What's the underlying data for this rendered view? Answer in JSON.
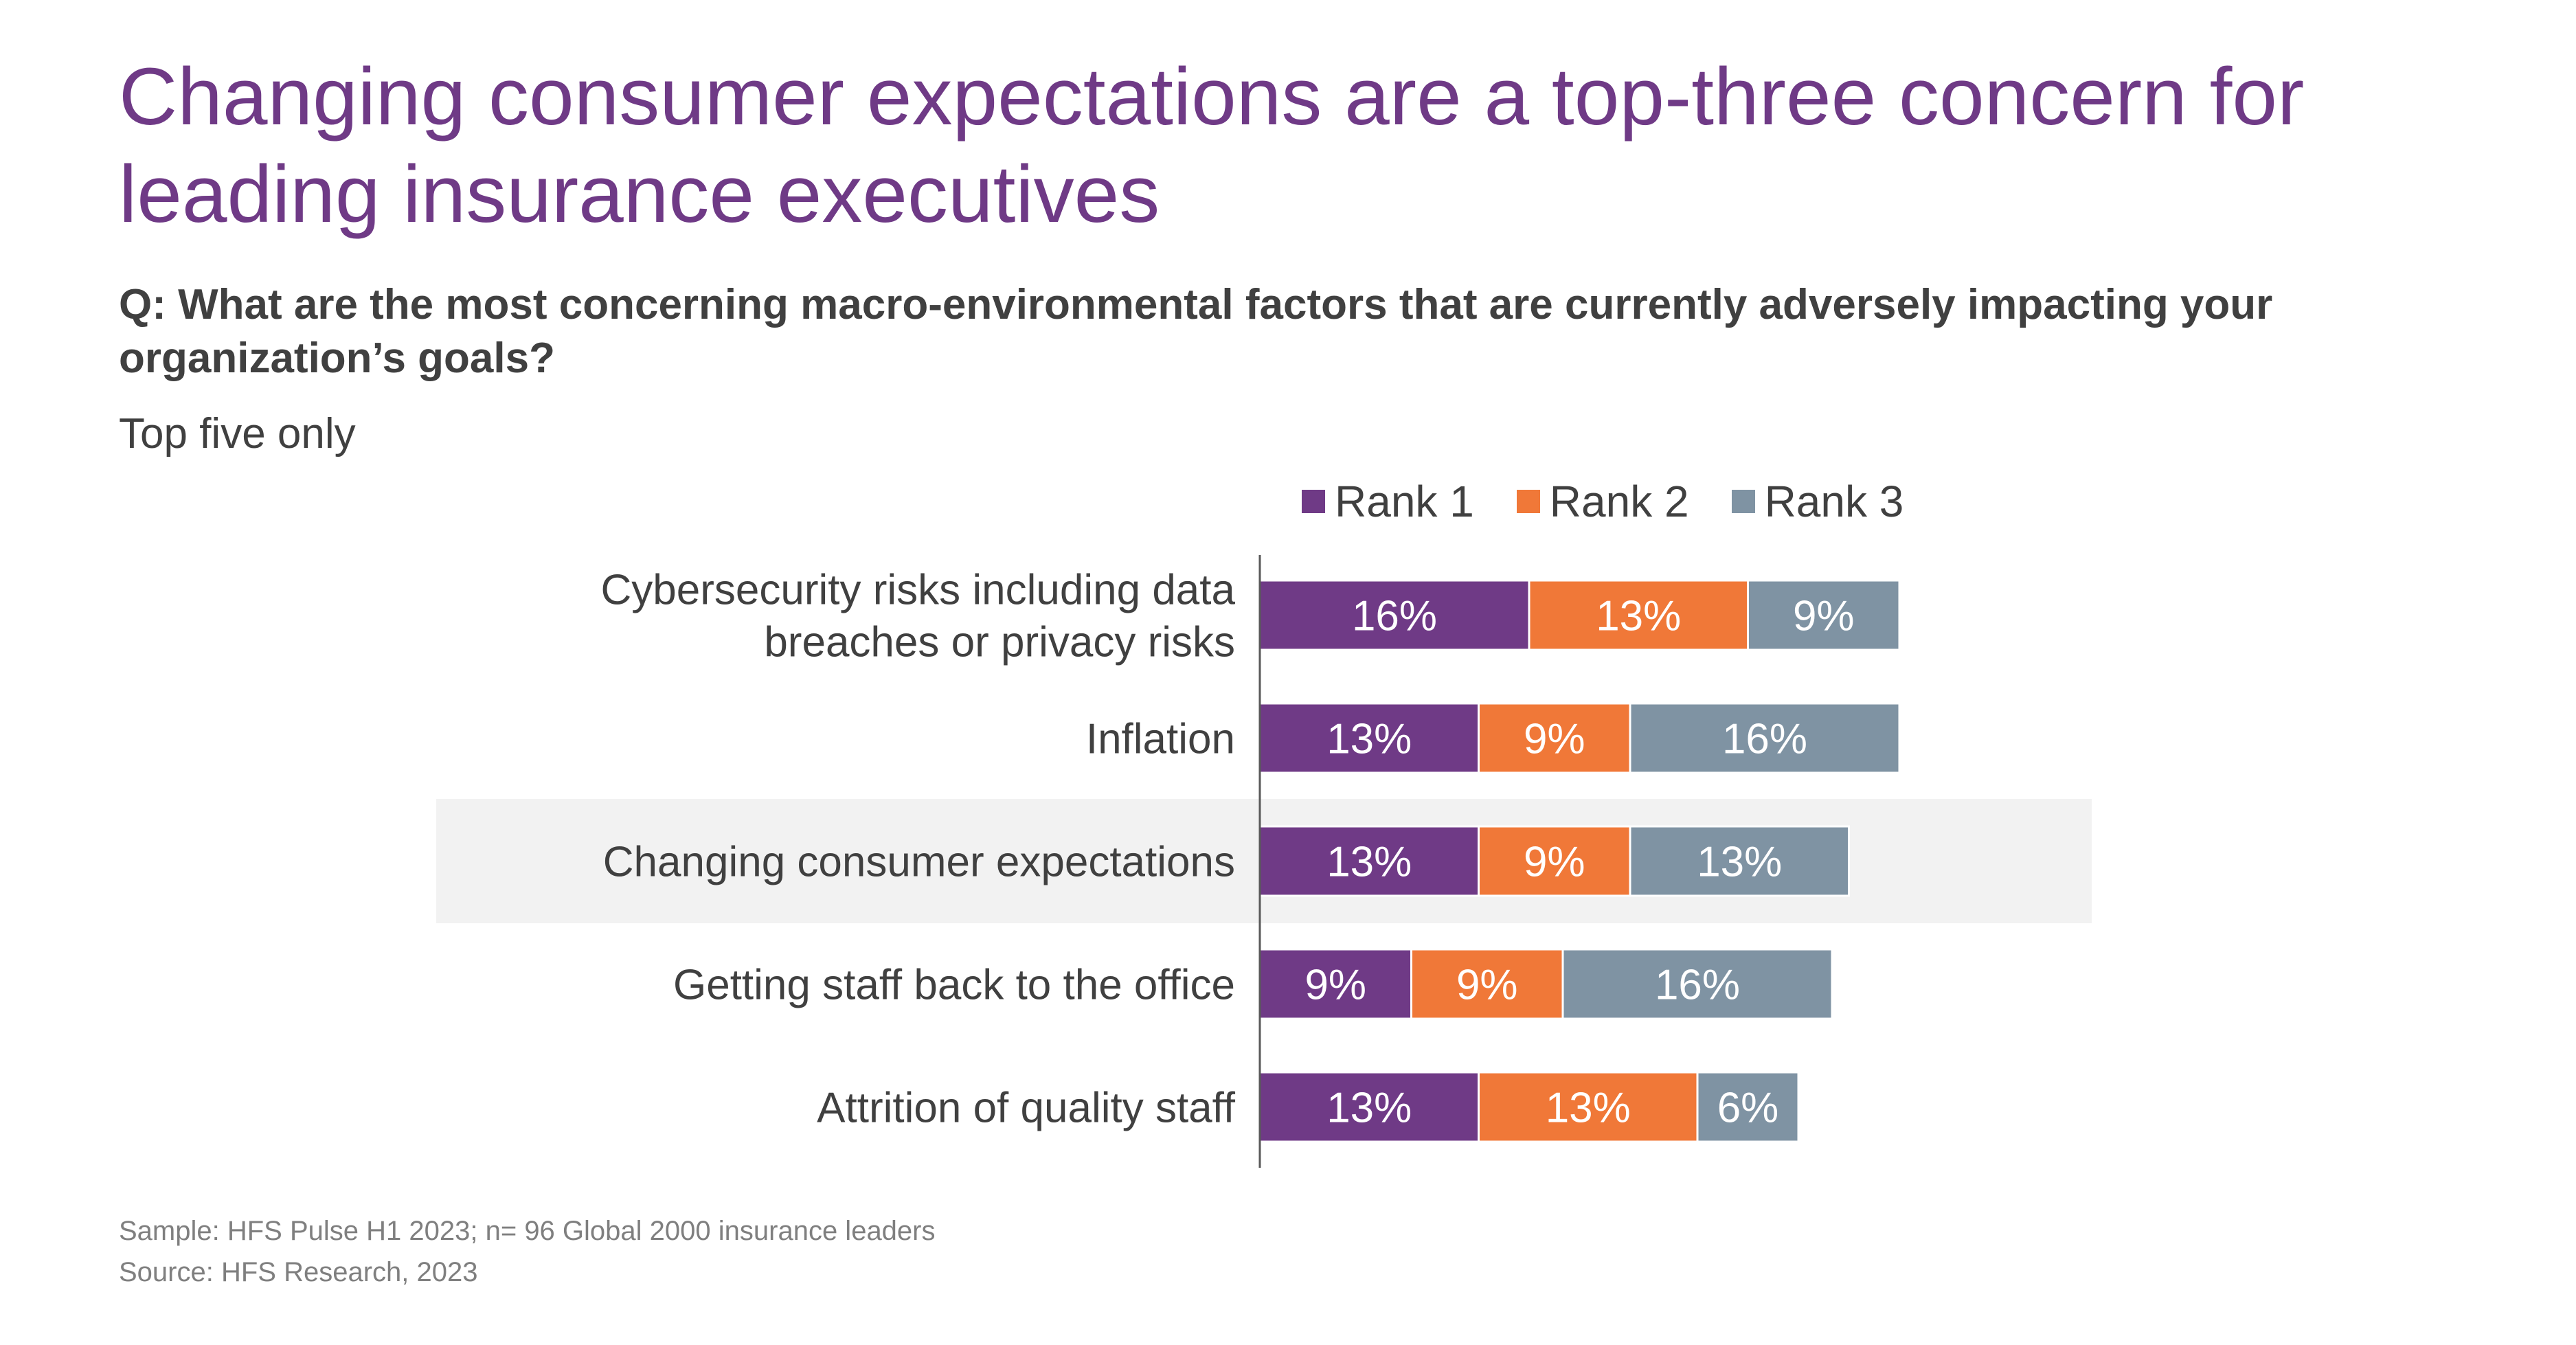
{
  "title": "Changing consumer expectations are a top-three concern for leading insurance executives",
  "question": "Q: What are the most concerning macro-environmental factors that are currently adversely impacting your organization’s goals?",
  "subtitle": "Top five only",
  "footnotes": {
    "sample": "Sample: HFS Pulse H1 2023; n= 96 Global 2000 insurance leaders",
    "source": "Source: HFS Research, 2023"
  },
  "chart_data": {
    "type": "bar",
    "orientation": "horizontal",
    "stacked": true,
    "categories": [
      [
        "Cybersecurity risks including data",
        "breaches or privacy risks"
      ],
      [
        "Inflation"
      ],
      [
        "Changing consumer expectations"
      ],
      [
        "Getting staff back to the office"
      ],
      [
        "Attrition of quality staff"
      ]
    ],
    "highlighted_category": 2,
    "series": [
      {
        "name": "Rank 1",
        "color": "#6f3a86",
        "values": [
          16,
          13,
          13,
          9,
          13
        ],
        "labels": [
          "16%",
          "13%",
          "13%",
          "9%",
          "13%"
        ]
      },
      {
        "name": "Rank 2",
        "color": "#f07838",
        "values": [
          13,
          9,
          9,
          9,
          13
        ],
        "labels": [
          "13%",
          "9%",
          "9%",
          "9%",
          "13%"
        ]
      },
      {
        "name": "Rank 3",
        "color": "#7f93a3",
        "values": [
          9,
          16,
          13,
          16,
          6
        ],
        "labels": [
          "9%",
          "16%",
          "13%",
          "16%",
          "6%"
        ]
      }
    ],
    "unit": "%",
    "legend_position": "top",
    "grid": false,
    "highlight_color": "#f2f2f2",
    "value_label_color": "#ffffff"
  }
}
